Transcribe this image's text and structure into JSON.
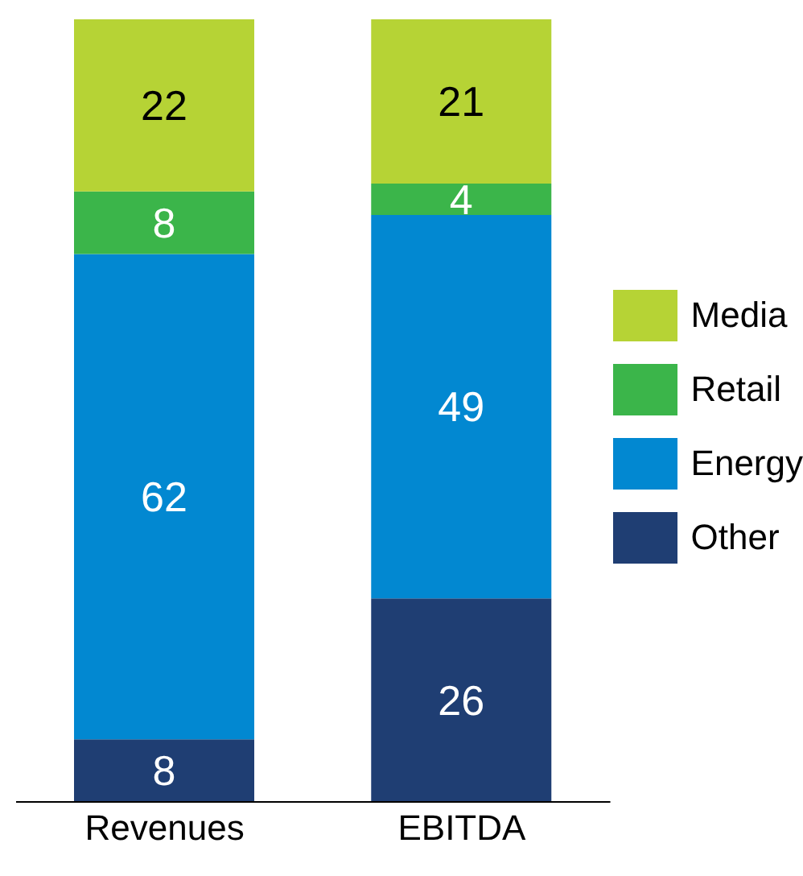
{
  "chart_data": {
    "type": "bar",
    "stacked": true,
    "categories": [
      "Revenues",
      "EBITDA"
    ],
    "series": [
      {
        "name": "Other",
        "color": "#1f3e73",
        "values": [
          8,
          26
        ]
      },
      {
        "name": "Energy",
        "color": "#0288d1",
        "values": [
          62,
          49
        ]
      },
      {
        "name": "Retail",
        "color": "#3bb54a",
        "values": [
          8,
          4
        ]
      },
      {
        "name": "Media",
        "color": "#b6d335",
        "values": [
          22,
          21
        ]
      }
    ],
    "data_labels": true,
    "legend": "right"
  }
}
